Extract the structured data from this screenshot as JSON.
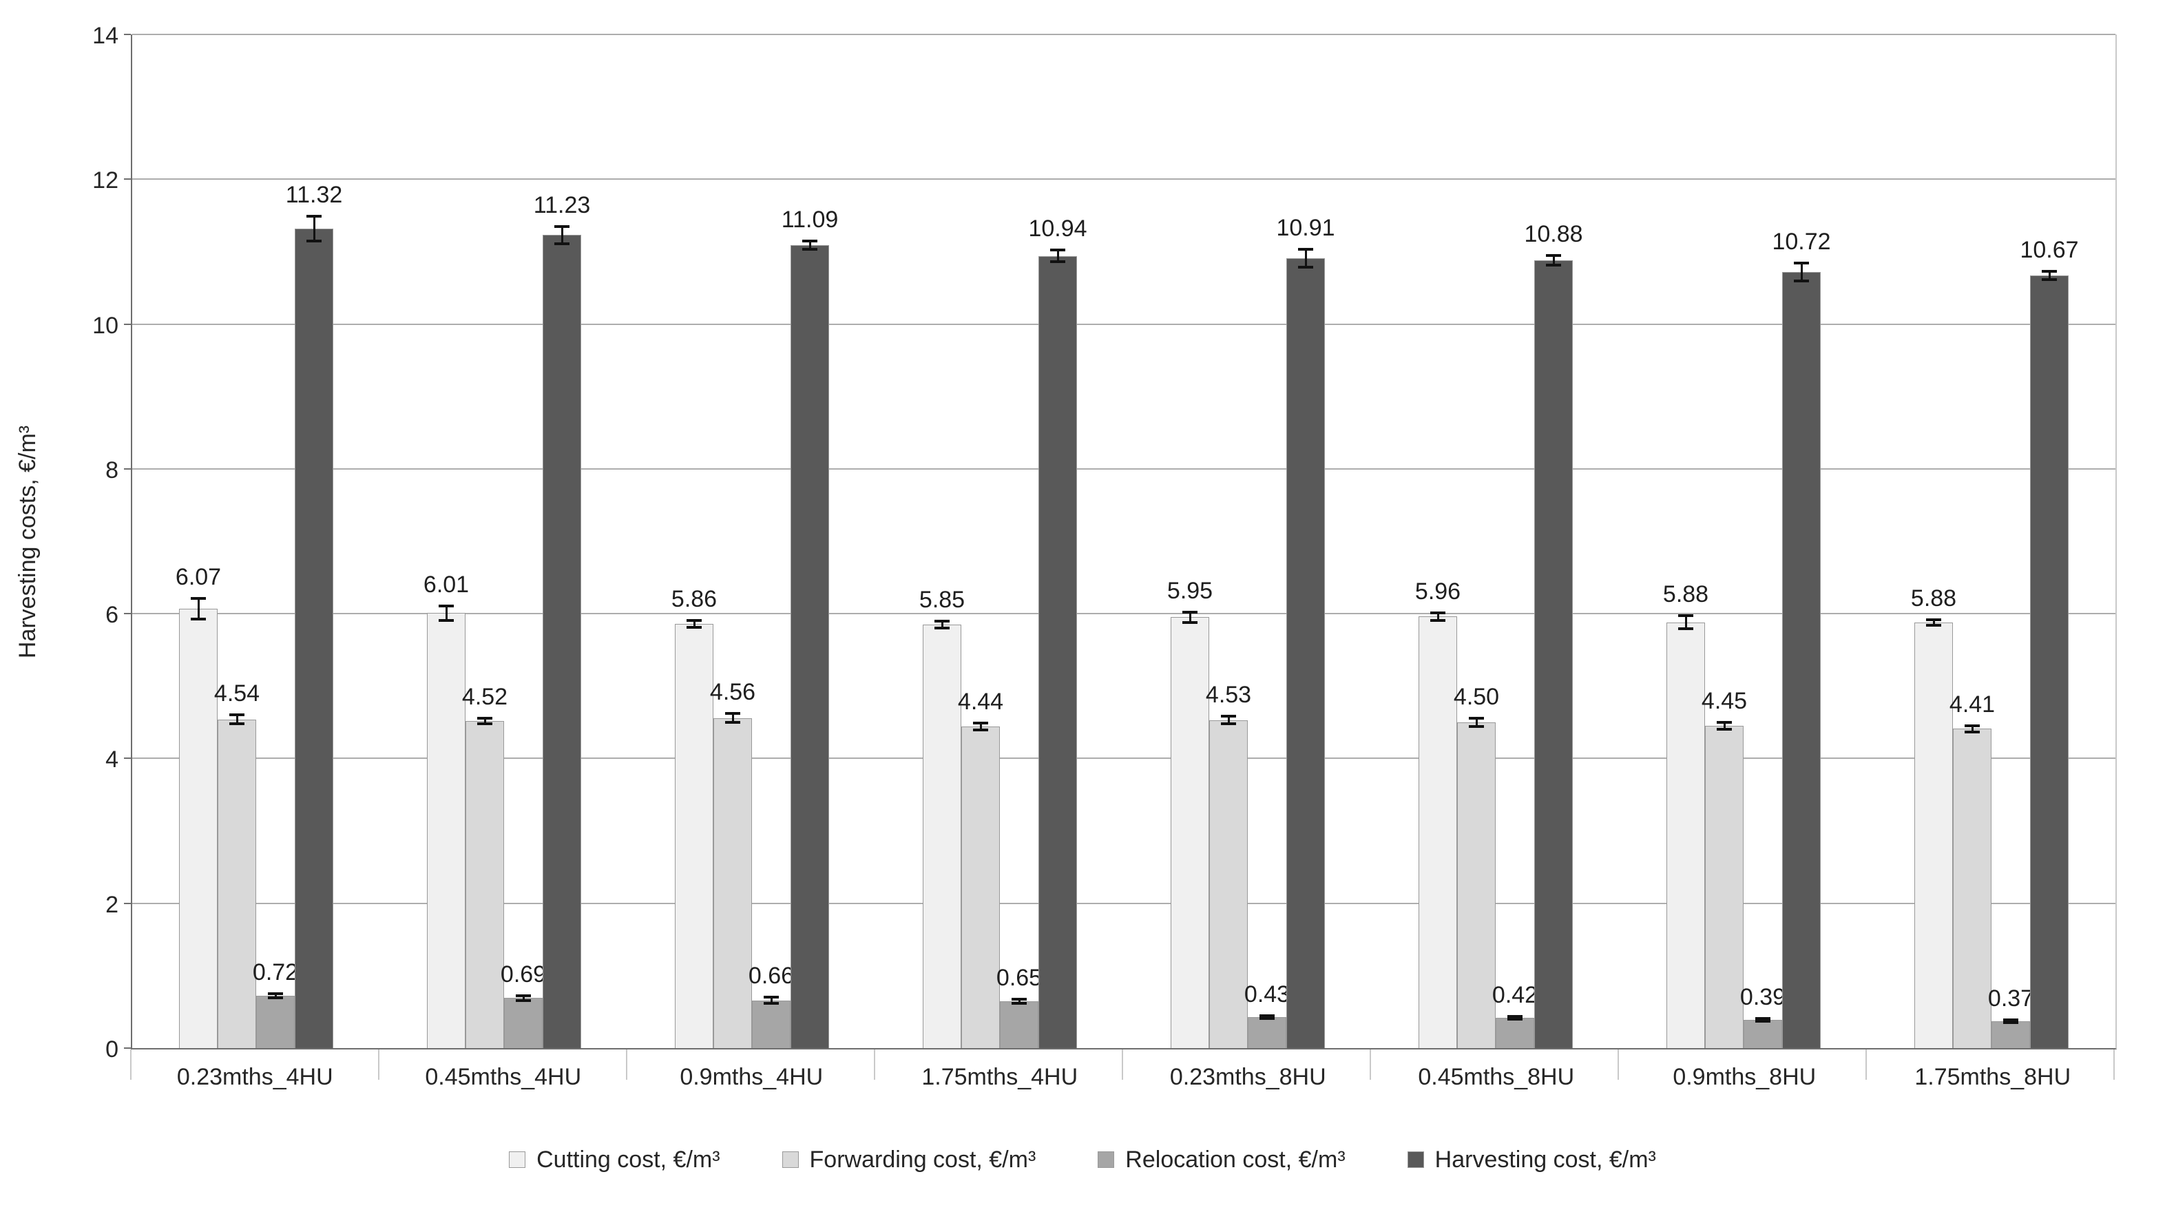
{
  "chart_data": {
    "type": "bar",
    "title": "",
    "xlabel": "",
    "ylabel": "Harvesting costs, €/m³",
    "ylim": [
      0,
      14
    ],
    "yticks": [
      0,
      2,
      4,
      6,
      8,
      10,
      12,
      14
    ],
    "grid": true,
    "legend_position": "bottom",
    "error_bars": true,
    "categories": [
      "0.23mths_4HU",
      "0.45mths_4HU",
      "0.9mths_4HU",
      "1.75mths_4HU",
      "0.23mths_8HU",
      "0.45mths_8HU",
      "0.9mths_8HU",
      "1.75mths_8HU"
    ],
    "series": [
      {
        "name": "Cutting cost, €/m³",
        "color": "#f0f0f0",
        "values": [
          6.07,
          6.01,
          5.86,
          5.85,
          5.95,
          5.96,
          5.88,
          5.88
        ],
        "errors": [
          0.14,
          0.1,
          0.05,
          0.05,
          0.07,
          0.05,
          0.09,
          0.04
        ]
      },
      {
        "name": "Forwarding cost, €/m³",
        "color": "#d9d9d9",
        "values": [
          4.54,
          4.52,
          4.56,
          4.44,
          4.53,
          4.5,
          4.45,
          4.41
        ],
        "errors": [
          0.06,
          0.04,
          0.06,
          0.05,
          0.05,
          0.06,
          0.05,
          0.04
        ]
      },
      {
        "name": "Relocation cost, €/m³",
        "color": "#a6a6a6",
        "values": [
          0.72,
          0.69,
          0.66,
          0.65,
          0.43,
          0.42,
          0.39,
          0.37
        ],
        "errors": [
          0.03,
          0.03,
          0.04,
          0.03,
          0.02,
          0.02,
          0.02,
          0.02
        ]
      },
      {
        "name": "Harvesting cost, €/m³",
        "color": "#595959",
        "values": [
          11.32,
          11.23,
          11.09,
          10.94,
          10.91,
          10.88,
          10.72,
          10.67
        ],
        "errors": [
          0.17,
          0.12,
          0.06,
          0.08,
          0.12,
          0.07,
          0.12,
          0.06
        ]
      }
    ]
  }
}
